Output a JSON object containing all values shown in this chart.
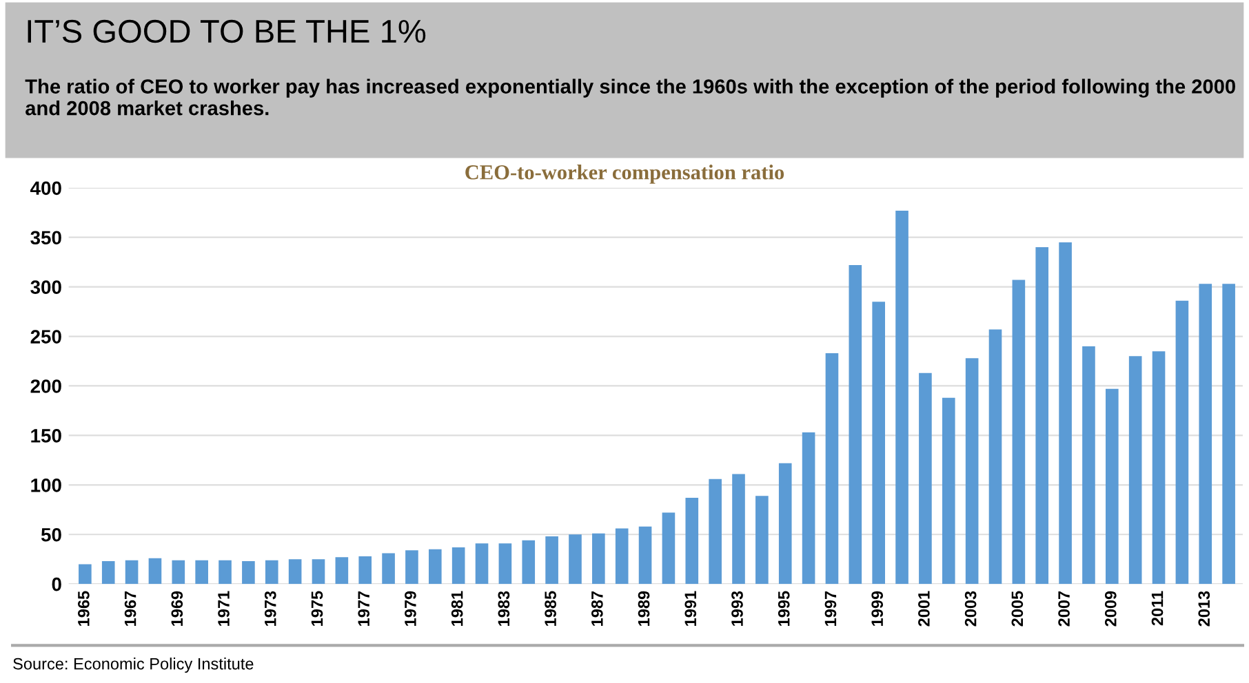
{
  "chart_data": {
    "type": "bar",
    "title": "IT’S GOOD TO BE THE 1%",
    "subtitle": "The ratio of CEO to worker pay has increased exponentially since the 1960s with the exception of the period following the 2000 and 2008 market crashes.",
    "annotations": [
      "CEO-to-worker compensation ratio",
      "Source: Economic Policy Institute"
    ],
    "categories": [
      "1965",
      null,
      "1967",
      null,
      "1969",
      null,
      "1971",
      null,
      "1973",
      null,
      "1975",
      null,
      "1977",
      null,
      "1979",
      null,
      "1981",
      null,
      "1983",
      null,
      "1985",
      null,
      "1987",
      null,
      "1989",
      null,
      "1991",
      null,
      "1993",
      null,
      "1995",
      null,
      "1997",
      null,
      "1999",
      null,
      "2001",
      null,
      "2003",
      null,
      "2005",
      null,
      "2007",
      null,
      "2009",
      null,
      "2011",
      null,
      "2013",
      null
    ],
    "values": [
      20,
      23,
      24,
      26,
      24,
      24,
      24,
      23,
      24,
      25,
      25,
      27,
      28,
      31,
      34,
      35,
      37,
      41,
      41,
      44,
      48,
      50,
      51,
      56,
      58,
      72,
      87,
      106,
      111,
      89,
      122,
      153,
      233,
      322,
      285,
      377,
      213,
      188,
      228,
      257,
      307,
      340,
      345,
      240,
      197,
      230,
      235,
      286,
      303,
      303
    ],
    "color": "#5b9bd5",
    "ylim": [
      0,
      400
    ],
    "yticks": [
      0,
      50,
      100,
      150,
      200,
      250,
      300,
      350,
      400
    ],
    "grid": "y",
    "legend": false
  }
}
